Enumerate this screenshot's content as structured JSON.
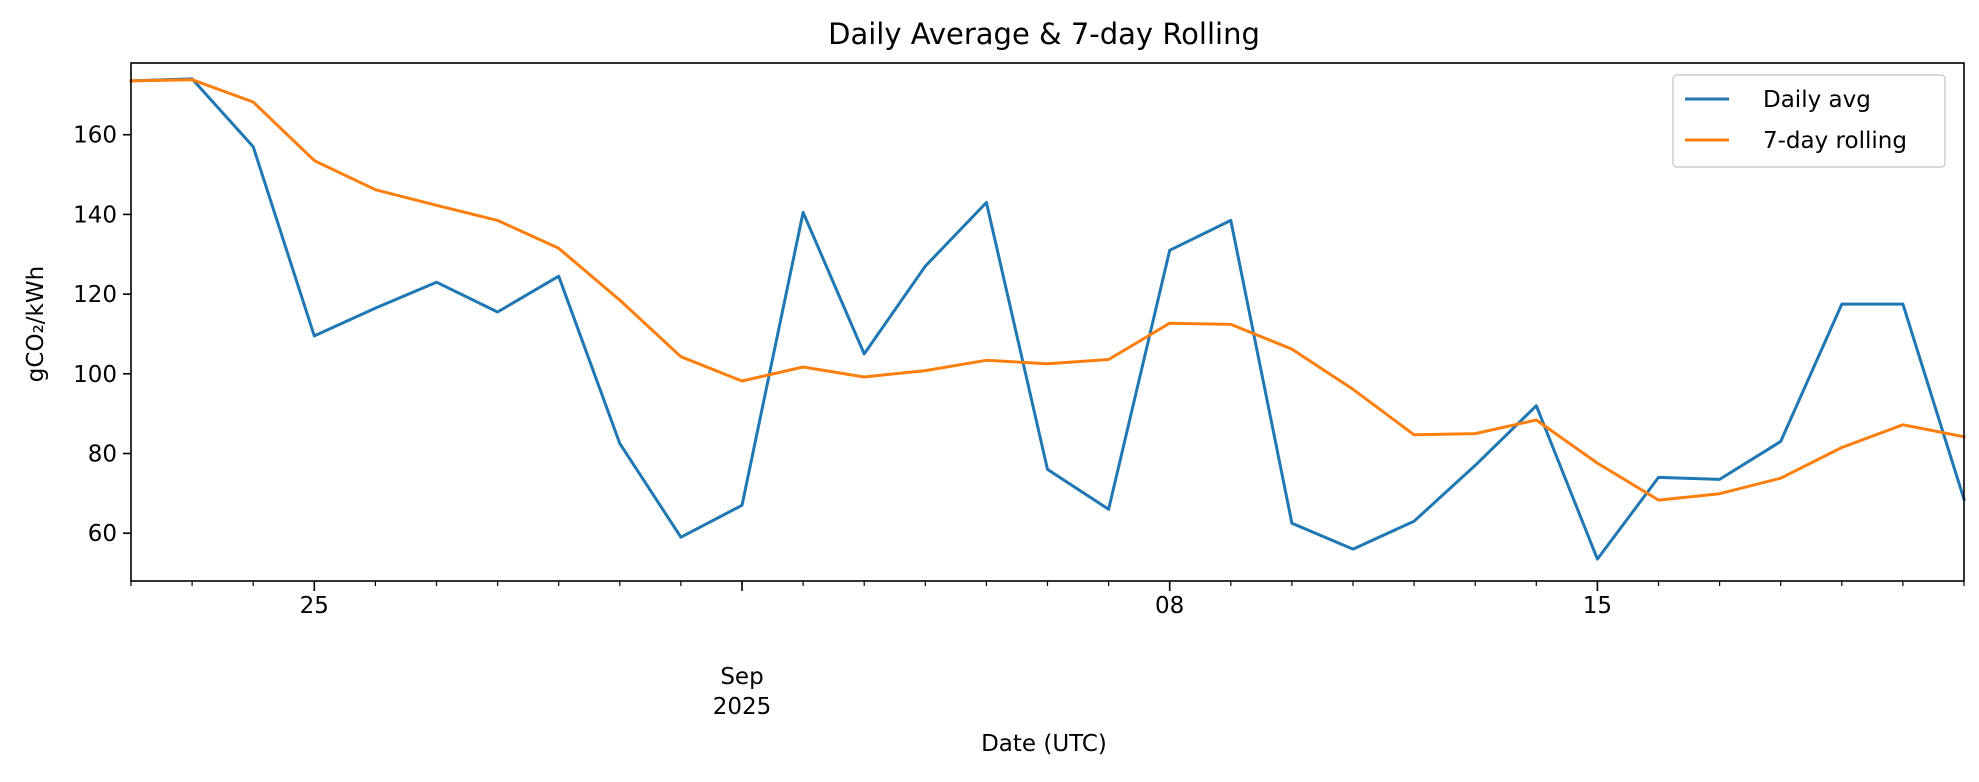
{
  "chart_data": {
    "type": "line",
    "title": "Daily Average & 7-day Rolling",
    "xlabel": "Date (UTC)",
    "ylabel": "gCO₂/kWh",
    "x": [
      "2025-08-22",
      "2025-08-23",
      "2025-08-24",
      "2025-08-25",
      "2025-08-26",
      "2025-08-27",
      "2025-08-28",
      "2025-08-29",
      "2025-08-30",
      "2025-08-31",
      "2025-09-01",
      "2025-09-02",
      "2025-09-03",
      "2025-09-04",
      "2025-09-05",
      "2025-09-06",
      "2025-09-07",
      "2025-09-08",
      "2025-09-09",
      "2025-09-10",
      "2025-09-11",
      "2025-09-12",
      "2025-09-13",
      "2025-09-14",
      "2025-09-15",
      "2025-09-16",
      "2025-09-17",
      "2025-09-18",
      "2025-09-19",
      "2025-09-20",
      "2025-09-21"
    ],
    "xlim": [
      "2025-08-22",
      "2025-09-21"
    ],
    "ylim": [
      48,
      178
    ],
    "yticks": [
      60,
      80,
      100,
      120,
      140,
      160
    ],
    "xticks_major": [
      {
        "date": "2025-08-25",
        "label": "25"
      },
      {
        "date": "2025-09-01",
        "label": "Sep\n2025"
      },
      {
        "date": "2025-09-08",
        "label": "08"
      },
      {
        "date": "2025-09-15",
        "label": "15"
      }
    ],
    "xticks_minor": "daily",
    "grid": false,
    "legend_position": "top-right",
    "series": [
      {
        "name": "Daily avg",
        "color": "#1f77b4",
        "values": [
          173.5,
          174.0,
          157.0,
          109.5,
          116.5,
          123.0,
          115.5,
          124.5,
          82.5,
          59.0,
          67.0,
          140.5,
          105.0,
          127.0,
          143.0,
          76.0,
          66.0,
          131.0,
          138.5,
          62.5,
          56.0,
          63.0,
          77.0,
          92.0,
          53.5,
          74.0,
          73.5,
          83.0,
          117.5,
          117.5,
          68.5
        ]
      },
      {
        "name": "7-day rolling",
        "color": "#ff7f0e",
        "values": [
          173.5,
          173.8,
          168.2,
          153.5,
          146.2,
          142.3,
          138.5,
          131.5,
          118.5,
          104.3,
          98.2,
          101.7,
          99.2,
          100.8,
          103.4,
          102.5,
          103.6,
          112.7,
          112.4,
          106.2,
          96.1,
          84.7,
          85.0,
          88.4,
          77.6,
          68.3,
          69.9,
          73.8,
          81.5,
          87.2,
          84.2
        ]
      }
    ]
  }
}
